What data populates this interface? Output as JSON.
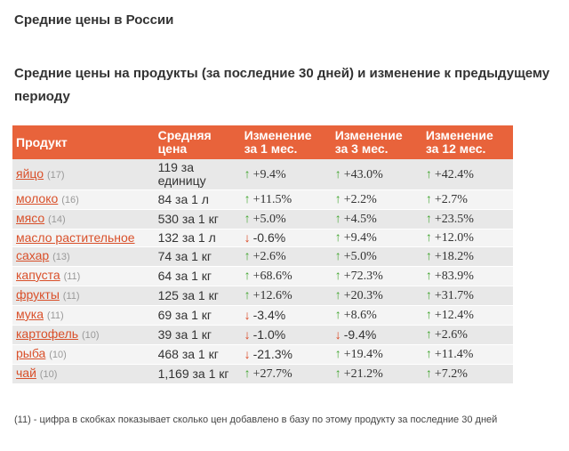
{
  "page_title": "Средние цены в России",
  "section_title": "Средние цены на продукты (за последние 30 дней) и изменение к предыдущему периоду",
  "table": {
    "headers": {
      "product": "Продукт",
      "price": "Средняя цена",
      "m1": "Изменение за 1 мес.",
      "m3": "Изменение за 3 мес.",
      "m12": "Изменение за 12 мес."
    },
    "rows": [
      {
        "name": "яйцо",
        "count": "(17)",
        "price": "119 за единицу",
        "m1": "+9.4%",
        "m1_dir": "up",
        "m3": "+43.0%",
        "m3_dir": "up",
        "m12": "+42.4%",
        "m12_dir": "up"
      },
      {
        "name": "молоко",
        "count": "(16)",
        "price": "84 за 1 л",
        "m1": "+11.5%",
        "m1_dir": "up",
        "m3": "+2.2%",
        "m3_dir": "up",
        "m12": "+2.7%",
        "m12_dir": "up"
      },
      {
        "name": "мясо",
        "count": "(14)",
        "price": "530 за 1 кг",
        "m1": "+5.0%",
        "m1_dir": "up",
        "m3": "+4.5%",
        "m3_dir": "up",
        "m12": "+23.5%",
        "m12_dir": "up"
      },
      {
        "name": "масло растительное",
        "count": "",
        "price": "132 за 1 л",
        "m1": "-0.6%",
        "m1_dir": "down",
        "m3": "+9.4%",
        "m3_dir": "up",
        "m12": "+12.0%",
        "m12_dir": "up"
      },
      {
        "name": "сахар",
        "count": "(13)",
        "price": "74 за 1 кг",
        "m1": "+2.6%",
        "m1_dir": "up",
        "m3": "+5.0%",
        "m3_dir": "up",
        "m12": "+18.2%",
        "m12_dir": "up"
      },
      {
        "name": "капуста",
        "count": "(11)",
        "price": "64 за 1 кг",
        "m1": "+68.6%",
        "m1_dir": "up",
        "m3": "+72.3%",
        "m3_dir": "up",
        "m12": "+83.9%",
        "m12_dir": "up"
      },
      {
        "name": "фрукты",
        "count": "(11)",
        "price": "125 за 1 кг",
        "m1": "+12.6%",
        "m1_dir": "up",
        "m3": "+20.3%",
        "m3_dir": "up",
        "m12": "+31.7%",
        "m12_dir": "up"
      },
      {
        "name": "мука",
        "count": "(11)",
        "price": "69 за 1 кг",
        "m1": "-3.4%",
        "m1_dir": "down",
        "m3": "+8.6%",
        "m3_dir": "up",
        "m12": "+12.4%",
        "m12_dir": "up"
      },
      {
        "name": "картофель",
        "count": "(10)",
        "price": "39 за 1 кг",
        "m1": "-1.0%",
        "m1_dir": "down",
        "m3": "-9.4%",
        "m3_dir": "down",
        "m12": "+2.6%",
        "m12_dir": "up"
      },
      {
        "name": "рыба",
        "count": "(10)",
        "price": "468 за 1 кг",
        "m1": "-21.3%",
        "m1_dir": "down",
        "m3": "+19.4%",
        "m3_dir": "up",
        "m12": "+11.4%",
        "m12_dir": "up"
      },
      {
        "name": "чай",
        "count": "(10)",
        "price": "1,169 за 1 кг",
        "m1": "+27.7%",
        "m1_dir": "up",
        "m3": "+21.2%",
        "m3_dir": "up",
        "m12": "+7.2%",
        "m12_dir": "up"
      }
    ]
  },
  "icons": {
    "up": "arrow-up-icon",
    "down": "arrow-down-icon"
  },
  "colors": {
    "header_bg": "#e8633b",
    "link": "#d9502a",
    "up": "#41a52f",
    "down": "#d9431e"
  },
  "footnote": "(11) - цифра в скобках показывает сколько цен добавлено в базу по этому продукту за последние 30 дней"
}
